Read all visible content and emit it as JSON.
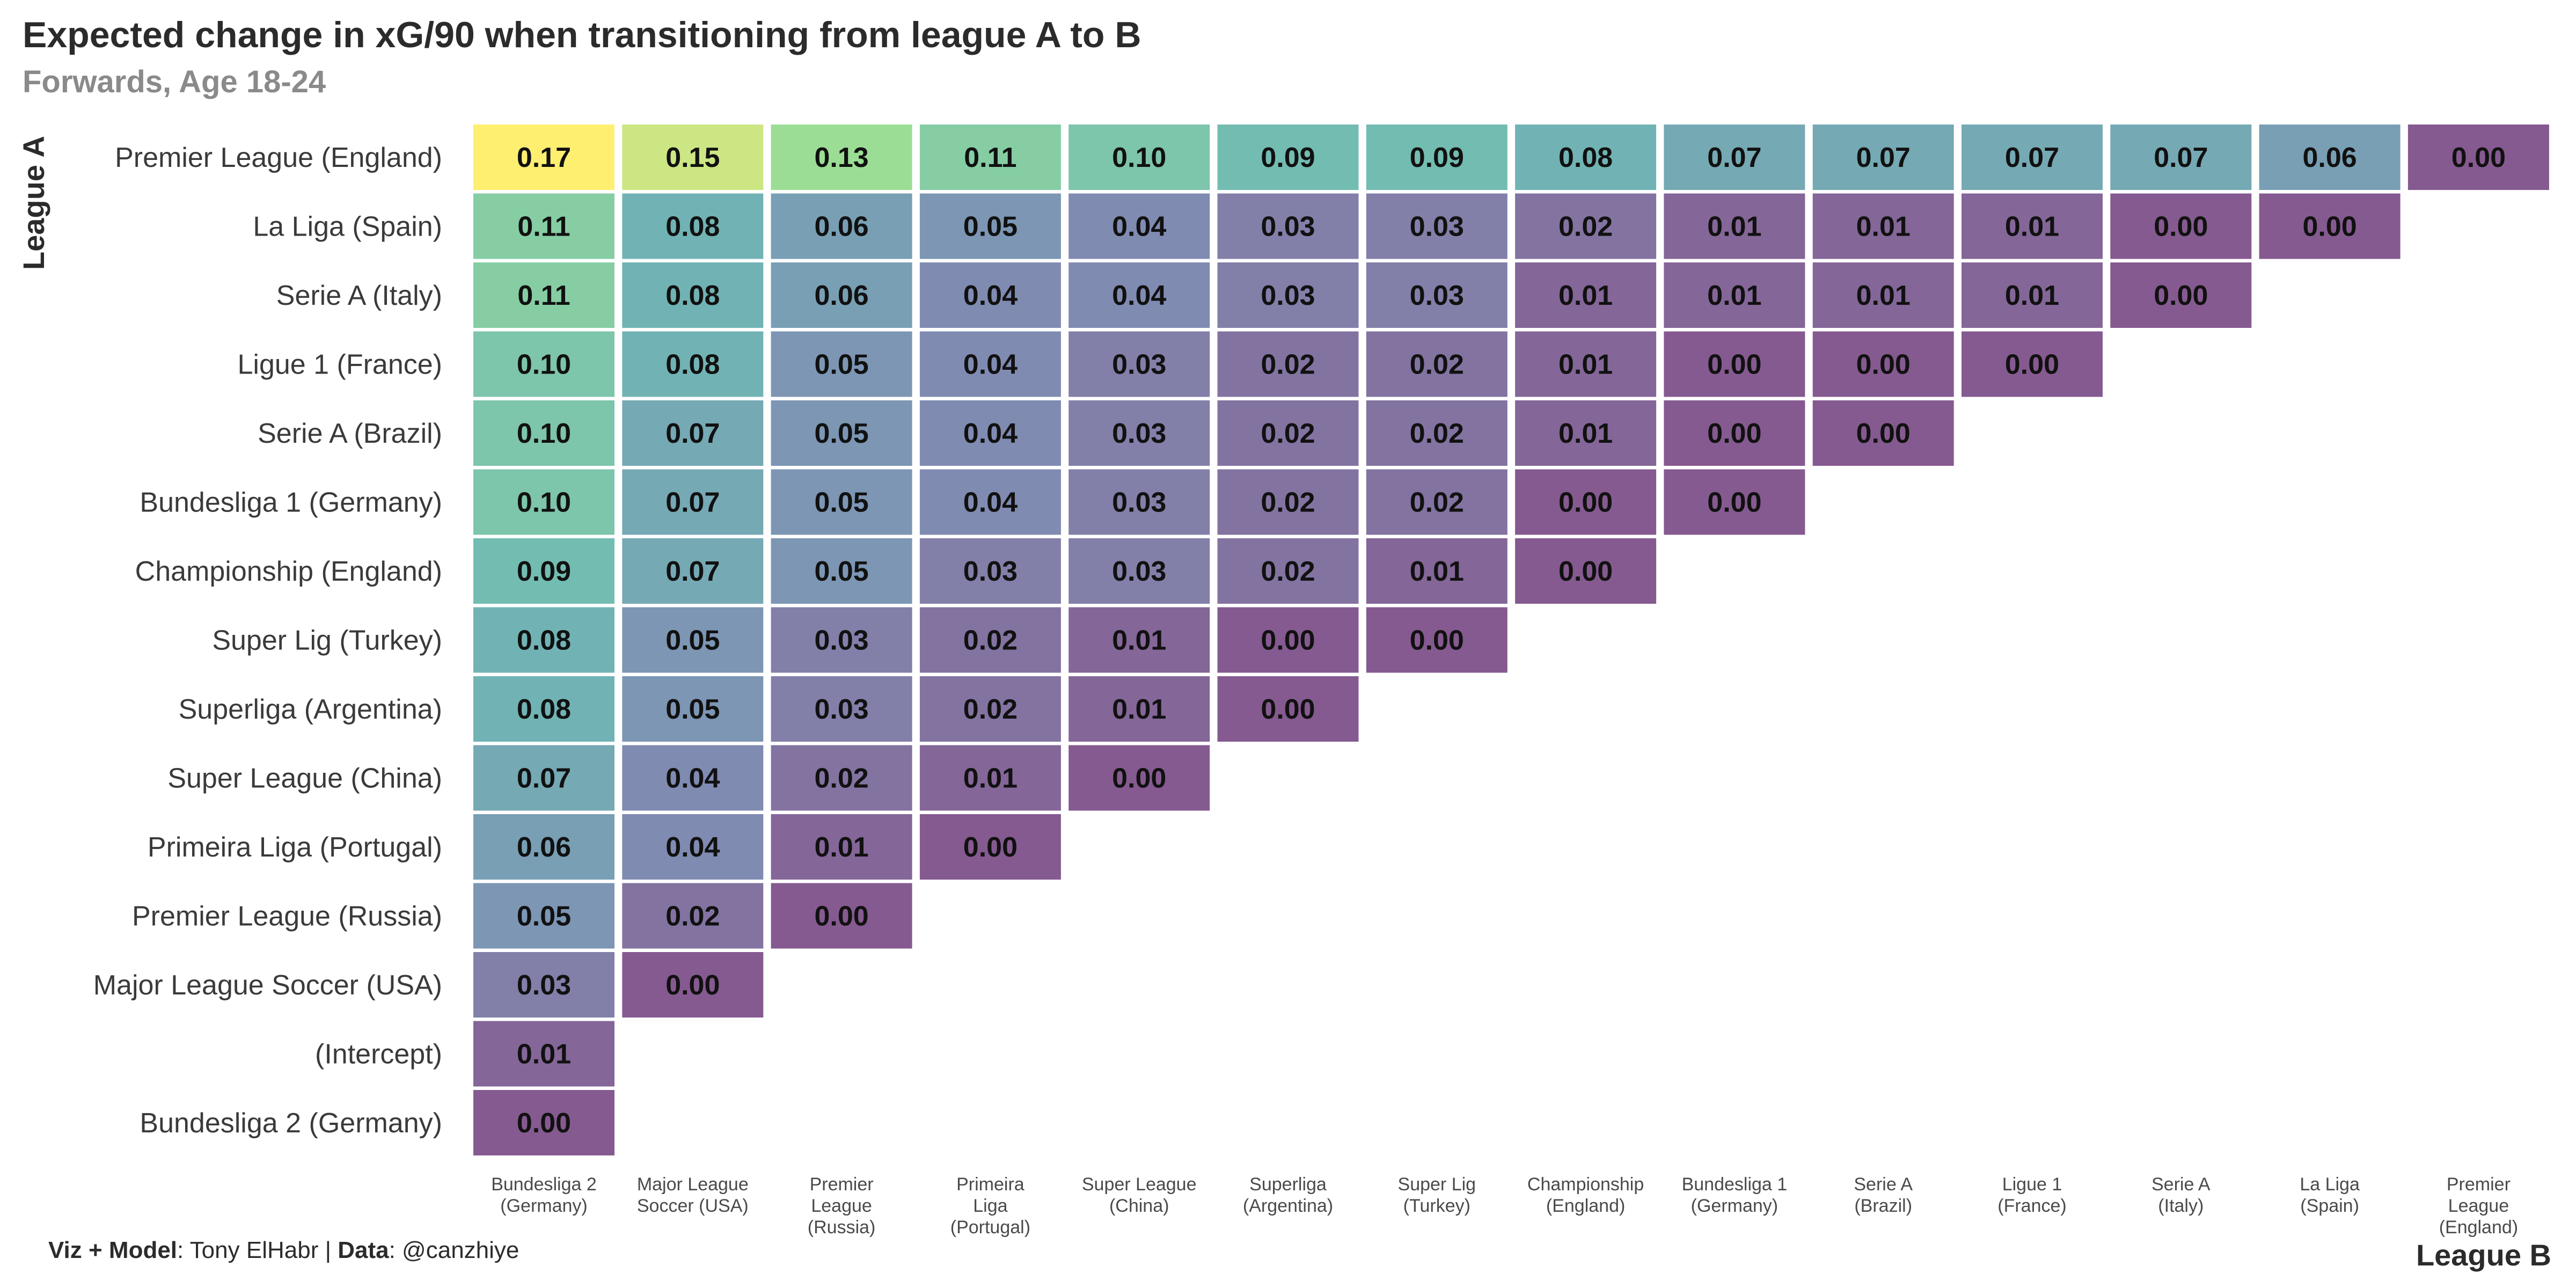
{
  "chart_data": {
    "type": "heatmap",
    "title": "Expected change in xG/90 when transitioning from league A to B",
    "subtitle": "Forwards, Age 18-24",
    "ylabel": "League A",
    "xlabel": "League B",
    "rows": [
      "Premier League (England)",
      "La Liga (Spain)",
      "Serie A (Italy)",
      "Ligue 1 (France)",
      "Serie A (Brazil)",
      "Bundesliga 1 (Germany)",
      "Championship (England)",
      "Super Lig (Turkey)",
      "Superliga (Argentina)",
      "Super League (China)",
      "Primeira Liga (Portugal)",
      "Premier League (Russia)",
      "Major League Soccer (USA)",
      "(Intercept)",
      "Bundesliga 2 (Germany)"
    ],
    "columns": [
      [
        "Bundesliga 2",
        "(Germany)"
      ],
      [
        "Major League",
        "Soccer (USA)"
      ],
      [
        "Premier",
        "League",
        "(Russia)"
      ],
      [
        "Primeira",
        "Liga",
        "(Portugal)"
      ],
      [
        "Super League",
        "(China)"
      ],
      [
        "Superliga",
        "(Argentina)"
      ],
      [
        "Super Lig",
        "(Turkey)"
      ],
      [
        "Championship",
        "(England)"
      ],
      [
        "Bundesliga 1",
        "(Germany)"
      ],
      [
        "Serie A",
        "(Brazil)"
      ],
      [
        "Ligue 1",
        "(France)"
      ],
      [
        "Serie A",
        "(Italy)"
      ],
      [
        "La Liga",
        "(Spain)"
      ],
      [
        "Premier",
        "League",
        "(England)"
      ]
    ],
    "values": [
      [
        0.17,
        0.15,
        0.13,
        0.11,
        0.1,
        0.09,
        0.09,
        0.08,
        0.07,
        0.07,
        0.07,
        0.07,
        0.06,
        0.0
      ],
      [
        0.11,
        0.08,
        0.06,
        0.05,
        0.04,
        0.03,
        0.03,
        0.02,
        0.01,
        0.01,
        0.01,
        0.0,
        0.0
      ],
      [
        0.11,
        0.08,
        0.06,
        0.04,
        0.04,
        0.03,
        0.03,
        0.01,
        0.01,
        0.01,
        0.01,
        0.0
      ],
      [
        0.1,
        0.08,
        0.05,
        0.04,
        0.03,
        0.02,
        0.02,
        0.01,
        0.0,
        0.0,
        0.0
      ],
      [
        0.1,
        0.07,
        0.05,
        0.04,
        0.03,
        0.02,
        0.02,
        0.01,
        0.0,
        0.0
      ],
      [
        0.1,
        0.07,
        0.05,
        0.04,
        0.03,
        0.02,
        0.02,
        0.0,
        0.0
      ],
      [
        0.09,
        0.07,
        0.05,
        0.03,
        0.03,
        0.02,
        0.01,
        0.0
      ],
      [
        0.08,
        0.05,
        0.03,
        0.02,
        0.01,
        0.0,
        0.0
      ],
      [
        0.08,
        0.05,
        0.03,
        0.02,
        0.01,
        0.0
      ],
      [
        0.07,
        0.04,
        0.02,
        0.01,
        0.0
      ],
      [
        0.06,
        0.04,
        0.01,
        0.0
      ],
      [
        0.05,
        0.02,
        0.0
      ],
      [
        0.03,
        0.0
      ],
      [
        0.01
      ],
      [
        0.0
      ]
    ],
    "color_scale": "viridis (alpha 0.65)",
    "value_range": [
      0.0,
      0.17
    ],
    "colors": {
      "high": "#fde725",
      "low": "#440154"
    }
  },
  "caption": {
    "viz_label": "Viz + Model",
    "viz_value": ": Tony ElHabr | ",
    "data_label": "Data",
    "data_value": ": @canzhiye"
  }
}
